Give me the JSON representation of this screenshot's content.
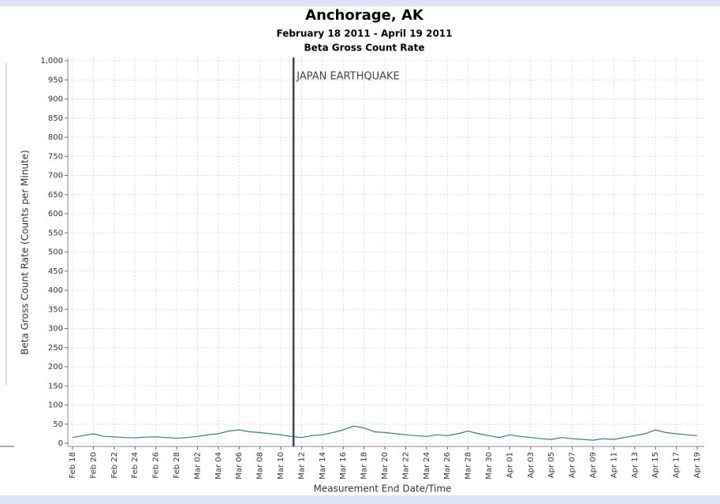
{
  "chart_data": {
    "type": "line",
    "title": "Anchorage, AK",
    "subtitle": "February 18 2011 - April 19 2011",
    "chart_label": "Beta Gross Count Rate",
    "y_label": "Beta Gross Count Rate (Counts per Minute)",
    "x_label": "Measurement End Date/Time",
    "categories": [
      "Feb 18",
      null,
      "Feb 20",
      null,
      "Feb 22",
      null,
      "Feb 24",
      null,
      "Feb 26",
      null,
      "Feb 28",
      null,
      "Mar 02",
      null,
      "Mar 04",
      null,
      "Mar 06",
      null,
      "Mar 08",
      null,
      "Mar 10",
      null,
      "Mar 12",
      null,
      "Mar 14",
      null,
      "Mar 16",
      null,
      "Mar 18",
      null,
      "Mar 20",
      null,
      "Mar 22",
      null,
      "Mar 24",
      null,
      "Mar 26",
      null,
      "Mar 28",
      null,
      "Mar 30",
      null,
      "Apr 01",
      null,
      "Apr 03",
      null,
      "Apr 05",
      null,
      "Apr 07",
      null,
      "Apr 09",
      null,
      "Apr 11",
      null,
      "Apr 13",
      null,
      "Apr 15",
      null,
      "Apr 17",
      null,
      "Apr 19"
    ],
    "series": [
      {
        "name": "Beta Gross Count Rate",
        "color": "#2b7a9a",
        "values": [
          15,
          20,
          25,
          18,
          17,
          15,
          14,
          16,
          17,
          15,
          13,
          15,
          18,
          22,
          25,
          32,
          35,
          30,
          28,
          25,
          22,
          18,
          15,
          20,
          22,
          28,
          35,
          45,
          40,
          30,
          28,
          25,
          22,
          20,
          18,
          22,
          20,
          25,
          32,
          25,
          20,
          15,
          22,
          18,
          15,
          12,
          10,
          15,
          12,
          10,
          8,
          12,
          10,
          15,
          20,
          25,
          35,
          28,
          25,
          22,
          20
        ]
      }
    ],
    "annotation": {
      "text": "JAPAN EARTHQUAKE",
      "x": 21
    },
    "ylim": [
      0,
      1000
    ],
    "yticks": [
      0,
      50,
      100,
      150,
      200,
      250,
      300,
      350,
      400,
      450,
      500,
      550,
      600,
      650,
      700,
      750,
      800,
      850,
      900,
      {
        "value": 950,
        "label": "950"
      },
      {
        "value": 1000,
        "label": "1,000"
      }
    ],
    "grid": true
  }
}
